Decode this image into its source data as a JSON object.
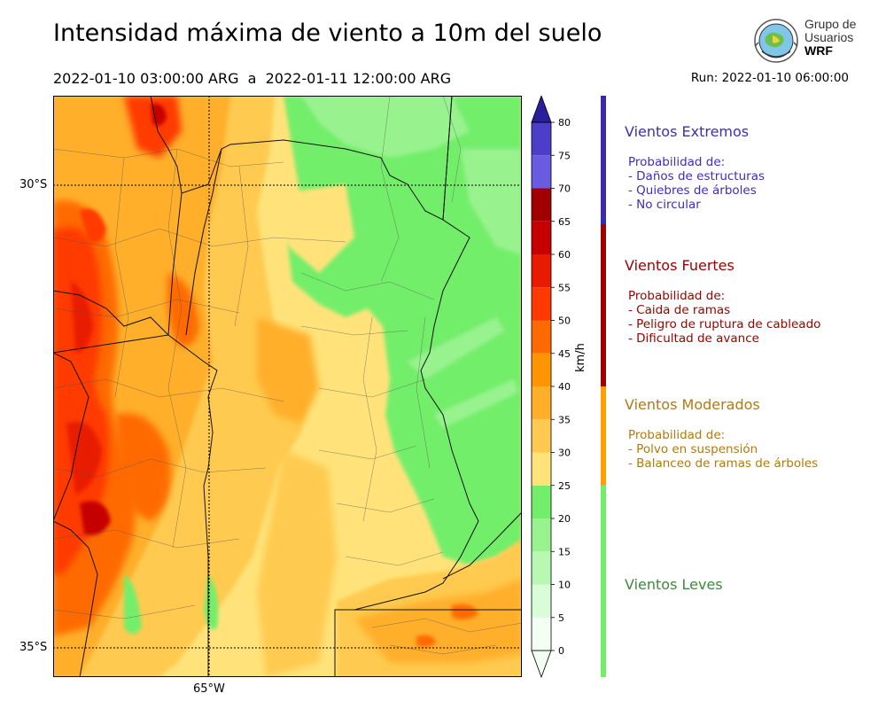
{
  "header": {
    "title": "Intensidad máxima de viento a 10m del suelo",
    "subtitle": "2022-01-10 03:00:00 ARG  a  2022-01-11 12:00:00 ARG",
    "run": "Run: 2022-01-10 06:00:00"
  },
  "logo": {
    "line1": "Grupo de",
    "line2": "Usuarios",
    "line3": "WRF"
  },
  "map": {
    "lat_labels": [
      "30°S",
      "35°S"
    ],
    "lon_labels": [
      "65°W"
    ]
  },
  "colorbar": {
    "unit": "km/h",
    "ticks": [
      "0",
      "5",
      "10",
      "15",
      "20",
      "25",
      "30",
      "35",
      "40",
      "45",
      "50",
      "55",
      "60",
      "65",
      "70",
      "75",
      "80"
    ],
    "colors": [
      "#f2fff2",
      "#d9fdd6",
      "#b8f8b2",
      "#98f38f",
      "#73ee6a",
      "#ffe37a",
      "#ffca4f",
      "#ffaf2a",
      "#ff9500",
      "#ff6a00",
      "#ff3a00",
      "#e81a00",
      "#c60000",
      "#a00000",
      "#6b5be0",
      "#4d3ec9",
      "#3c2eb4"
    ],
    "over_color": "#2a1f9a"
  },
  "categories": [
    {
      "title": "Vientos Extremos",
      "color": "#3f2eb5",
      "bar_color": "#3a2aa8",
      "body": "Probabilidad de:\n- Daños de estructuras\n- Quiebres de árboles\n- No circular"
    },
    {
      "title": "Vientos Fuertes",
      "color": "#a00000",
      "bar_color": "#a00000",
      "body": "Probabilidad de:\n- Caida de ramas\n- Peligro de ruptura de cableado\n- Dificultad de avance"
    },
    {
      "title": "Vientos Moderados",
      "color": "#b07a12",
      "bar_color": "#ff9e00",
      "body": "Probabilidad de:\n- Polvo en suspensión\n- Balanceo de ramas de árboles"
    },
    {
      "title": "Vientos Leves",
      "color": "#3b8a3b",
      "bar_color": "#73ee6a",
      "body": ""
    }
  ]
}
